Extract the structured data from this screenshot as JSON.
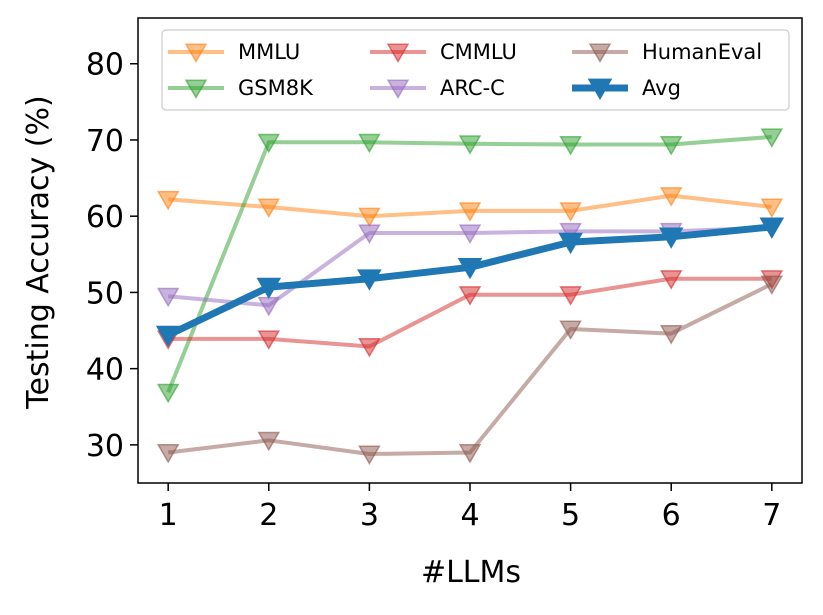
{
  "chart_data": {
    "type": "line",
    "title": "",
    "xlabel": "#LLMs",
    "ylabel": "Testing Accuracy (%)",
    "x": [
      1,
      2,
      3,
      4,
      5,
      6,
      7
    ],
    "x_ticks": [
      "1",
      "2",
      "3",
      "4",
      "5",
      "6",
      "7"
    ],
    "y_ticks": [
      "30",
      "40",
      "50",
      "60",
      "70",
      "80"
    ],
    "y_tick_values": [
      30,
      40,
      50,
      60,
      70,
      80
    ],
    "xlim": [
      0.7,
      7.3
    ],
    "ylim": [
      25,
      86
    ],
    "grid": false,
    "legend_position": "top",
    "marker": "triangle-down",
    "series": [
      {
        "name": "MMLU",
        "color": "#ff7f0e",
        "values": [
          62.2,
          61.2,
          60.0,
          60.7,
          60.7,
          62.7,
          61.2
        ]
      },
      {
        "name": "GSM8K",
        "color": "#2ca02c",
        "values": [
          36.9,
          69.7,
          69.7,
          69.5,
          69.4,
          69.4,
          70.4
        ]
      },
      {
        "name": "CMMLU",
        "color": "#d62728",
        "values": [
          43.9,
          43.9,
          42.9,
          49.7,
          49.7,
          51.8,
          51.8
        ]
      },
      {
        "name": "ARC-C",
        "color": "#9467bd",
        "values": [
          49.5,
          48.3,
          57.8,
          57.8,
          58.0,
          58.0,
          58.5
        ]
      },
      {
        "name": "HumanEval",
        "color": "#8c564b",
        "values": [
          29.0,
          30.6,
          28.8,
          29.0,
          45.2,
          44.6,
          51.1
        ]
      },
      {
        "name": "Avg",
        "color": "#1f77b4",
        "values": [
          44.4,
          50.7,
          51.8,
          53.3,
          56.6,
          57.3,
          58.6
        ],
        "emphasis": true
      }
    ]
  }
}
